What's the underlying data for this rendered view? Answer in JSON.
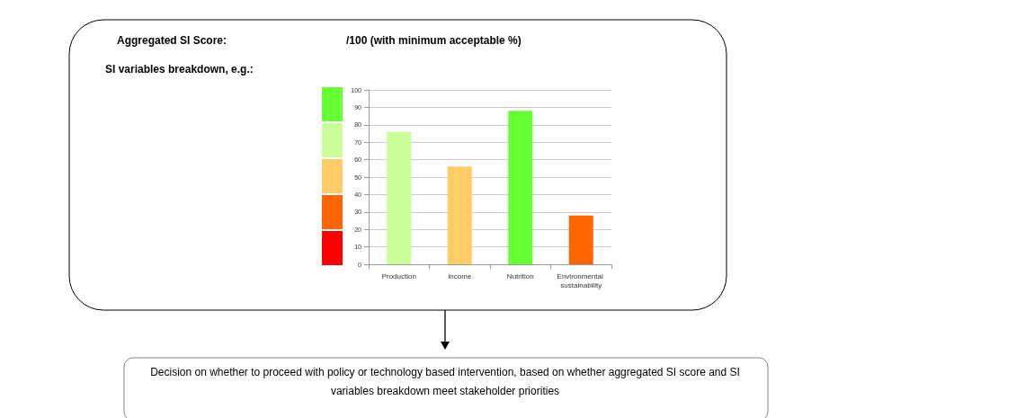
{
  "chart_data": {
    "type": "bar",
    "annotations": [
      "Aggregated SI Score:",
      "/100 (with minimum acceptable %)",
      "SI variables breakdown, e.g.:",
      "Decision on whether to proceed with policy or technology based intervention, based on whether aggregated SI score and SI variables breakdown meet stakeholder priorities"
    ],
    "categories": [
      "Production",
      "Income",
      "Nutrition",
      "Environmental sustainability"
    ],
    "values": [
      76,
      56,
      88,
      28
    ],
    "colors": [
      "#ccff99",
      "#ffcc66",
      "#66ff33",
      "#ff6600"
    ],
    "ylim": [
      0,
      100
    ],
    "yticks": [
      0,
      10,
      20,
      30,
      40,
      50,
      60,
      70,
      80,
      90,
      100
    ],
    "grid": "y"
  }
}
